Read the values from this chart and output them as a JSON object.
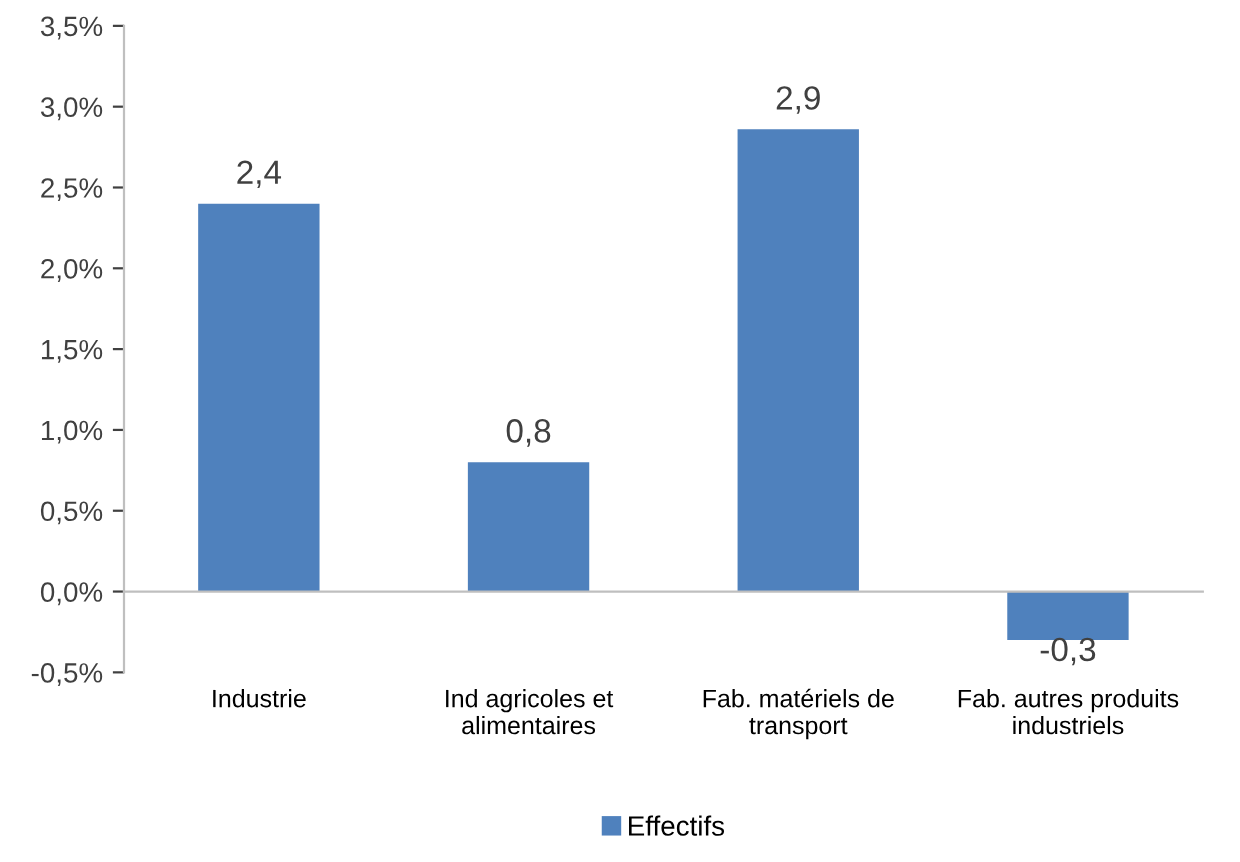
{
  "chart_data": {
    "type": "bar",
    "categories": [
      "Industrie",
      "Ind agricoles et\nalimentaires",
      "Fab. matériels de\ntransport",
      "Fab. autres produits\nindustriels"
    ],
    "series": [
      {
        "name": "Effectifs",
        "color": "#4f81bd",
        "values": [
          2.4,
          0.8,
          2.86,
          -0.3
        ],
        "value_labels": [
          "2,4",
          "0,8",
          "2,9",
          "-0,3"
        ]
      }
    ],
    "ylim": [
      -0.5,
      3.5
    ],
    "yticks": [
      {
        "value": -0.5,
        "label": "-0,5%"
      },
      {
        "value": 0,
        "label": "0,0%"
      },
      {
        "value": 0.5,
        "label": "0,5%"
      },
      {
        "value": 1,
        "label": "1,0%"
      },
      {
        "value": 1.5,
        "label": "1,5%"
      },
      {
        "value": 2,
        "label": "2,0%"
      },
      {
        "value": 2.5,
        "label": "2,5%"
      },
      {
        "value": 3,
        "label": "3,0%"
      },
      {
        "value": 3.5,
        "label": "3,5%"
      }
    ],
    "legend": "bottom"
  }
}
